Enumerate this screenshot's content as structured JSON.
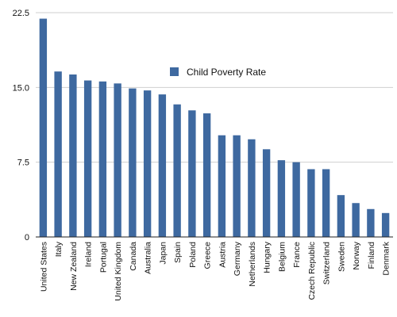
{
  "chart_data": {
    "type": "bar",
    "title": "",
    "xlabel": "",
    "ylabel": "",
    "categories": [
      "United States",
      "Italy",
      "New Zealand",
      "Ireland",
      "Portugal",
      "United Kingdom",
      "Canada",
      "Australia",
      "Japan",
      "Spain",
      "Poland",
      "Greece",
      "Austria",
      "Germany",
      "Netherlands",
      "Hungary",
      "Belgium",
      "France",
      "Czech Republic",
      "Switzerland",
      "Sweden",
      "Norway",
      "Finland",
      "Denmark"
    ],
    "series": [
      {
        "name": "Child Poverty Rate",
        "color": "#3e69a0",
        "values": [
          21.9,
          16.6,
          16.3,
          15.7,
          15.6,
          15.4,
          14.9,
          14.7,
          14.3,
          13.3,
          12.7,
          12.4,
          10.2,
          10.2,
          9.8,
          8.8,
          7.7,
          7.5,
          6.8,
          6.8,
          4.2,
          3.4,
          2.8,
          2.4
        ]
      }
    ],
    "ylim": [
      0,
      22.5
    ],
    "yticks": [
      "0",
      "7.5",
      "15.0",
      "22.5"
    ],
    "ytick_values": [
      0,
      7.5,
      15,
      22.5
    ],
    "grid": true,
    "legend": "center"
  }
}
